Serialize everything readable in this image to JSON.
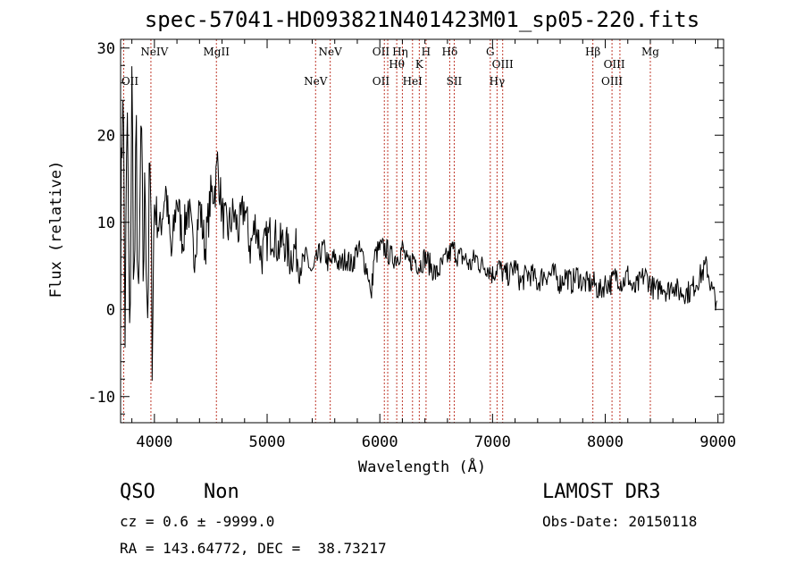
{
  "chart_data": {
    "type": "line",
    "title": "spec-57041-HD093821N401423M01_sp05-220.fits",
    "xlabel": "Wavelength (Å)",
    "ylabel": "Flux (relative)",
    "xlim": [
      3700,
      9050
    ],
    "ylim": [
      -13,
      31
    ],
    "xticks": [
      4000,
      5000,
      6000,
      7000,
      8000,
      9000
    ],
    "yticks": [
      -10,
      0,
      10,
      20,
      30
    ],
    "series": [
      {
        "name": "flux",
        "x": [
          3700,
          3720,
          3740,
          3760,
          3780,
          3800,
          3820,
          3840,
          3860,
          3880,
          3900,
          3920,
          3940,
          3960,
          3980,
          4000,
          4050,
          4100,
          4150,
          4200,
          4250,
          4300,
          4350,
          4400,
          4450,
          4500,
          4540,
          4560,
          4580,
          4600,
          4650,
          4700,
          4750,
          4800,
          4850,
          4900,
          4950,
          5000,
          5050,
          5100,
          5150,
          5200,
          5250,
          5300,
          5350,
          5400,
          5450,
          5500,
          5550,
          5600,
          5650,
          5700,
          5750,
          5800,
          5850,
          5900,
          5920,
          5950,
          6000,
          6050,
          6100,
          6150,
          6200,
          6250,
          6300,
          6350,
          6400,
          6450,
          6500,
          6550,
          6600,
          6650,
          6700,
          6750,
          6800,
          6850,
          6900,
          6950,
          7000,
          7050,
          7100,
          7150,
          7200,
          7250,
          7300,
          7350,
          7400,
          7450,
          7500,
          7550,
          7600,
          7650,
          7700,
          7750,
          7800,
          7850,
          7900,
          7950,
          8000,
          8050,
          8100,
          8150,
          8200,
          8250,
          8300,
          8350,
          8400,
          8450,
          8500,
          8550,
          8600,
          8650,
          8700,
          8750,
          8800,
          8850,
          8900,
          8950,
          8990
        ],
        "y": [
          5,
          28,
          -2,
          22,
          -6,
          25,
          2,
          18,
          -3,
          20,
          5,
          14,
          0,
          16,
          -2,
          12,
          9,
          14,
          6,
          13,
          8,
          12,
          6,
          12,
          7,
          13,
          14,
          17,
          14,
          11,
          9,
          11,
          9,
          12,
          7,
          10,
          6,
          8,
          9,
          7,
          8,
          6,
          7,
          5,
          6,
          4,
          6,
          7,
          5,
          6,
          5,
          6,
          5,
          7,
          6,
          4,
          1,
          6,
          7,
          7,
          6,
          6,
          7,
          5,
          6,
          5,
          6,
          5,
          4,
          5,
          6,
          7,
          6,
          6,
          5,
          6,
          5,
          5,
          4,
          5,
          4,
          4,
          5,
          3,
          4,
          4,
          3,
          4,
          4,
          4,
          3,
          4,
          3,
          4,
          3,
          3,
          3,
          2,
          3,
          3,
          4,
          3,
          4,
          2,
          3,
          4,
          3,
          2,
          3,
          2,
          3,
          2,
          2,
          2,
          3,
          4,
          5,
          2,
          1
        ]
      }
    ],
    "lines": [
      {
        "name": "OII",
        "x": 3727
      },
      {
        "name": "NeIV",
        "x": 3969
      },
      {
        "name": "MgII",
        "x": 4550
      },
      {
        "name": "NeV",
        "x": 5430
      },
      {
        "name": "NeV",
        "x": 5560
      },
      {
        "name": "OII",
        "x": 6040
      },
      {
        "name": "OII",
        "x": 6070
      },
      {
        "name": "Hθ",
        "x": 6150
      },
      {
        "name": "Hη",
        "x": 6200
      },
      {
        "name": "HeI",
        "x": 6290
      },
      {
        "name": "K",
        "x": 6350
      },
      {
        "name": "H",
        "x": 6410
      },
      {
        "name": "Hδ",
        "x": 6620
      },
      {
        "name": "SII",
        "x": 6660
      },
      {
        "name": "G",
        "x": 6980
      },
      {
        "name": "Hγ",
        "x": 7040
      },
      {
        "name": "OIII",
        "x": 7090
      },
      {
        "name": "Hβ",
        "x": 7890
      },
      {
        "name": "OIII",
        "x": 8060
      },
      {
        "name": "OIII",
        "x": 8130
      },
      {
        "name": "Mg",
        "x": 8400
      }
    ],
    "line_labels_top": [
      {
        "text": "NeIV",
        "x": 4000
      },
      {
        "text": "MgII",
        "x": 4550
      },
      {
        "text": "NeV",
        "x": 5560
      },
      {
        "text": "OII",
        "x": 6010
      },
      {
        "text": "Hη",
        "x": 6180
      },
      {
        "text": "Hθ",
        "x": 6150
      },
      {
        "text": "H",
        "x": 6410
      },
      {
        "text": "K",
        "x": 6350
      },
      {
        "text": "Hδ",
        "x": 6620
      },
      {
        "text": "G",
        "x": 6980
      },
      {
        "text": "OIII",
        "x": 7090
      },
      {
        "text": "Hβ",
        "x": 7890
      },
      {
        "text": "OIII",
        "x": 8080
      },
      {
        "text": "Mg",
        "x": 8400
      }
    ],
    "line_labels_low": [
      {
        "text": "OII",
        "x": 3720
      },
      {
        "text": "NeV",
        "x": 5430
      },
      {
        "text": "OII",
        "x": 6010
      },
      {
        "text": "HeI",
        "x": 6290
      },
      {
        "text": "SII",
        "x": 6660
      },
      {
        "text": "Hγ",
        "x": 7040
      },
      {
        "text": "OIII",
        "x": 8060
      }
    ]
  },
  "info": {
    "class": "QSO",
    "subclass": "Non",
    "survey": "LAMOST DR3",
    "cz": "cz = 0.6 ± -9999.0",
    "obs_date": "Obs-Date: 20150118",
    "radec": "RA = 143.64772, DEC =  38.73217"
  },
  "colors": {
    "line_marker": "#c0392b",
    "spectrum": "#000000"
  }
}
